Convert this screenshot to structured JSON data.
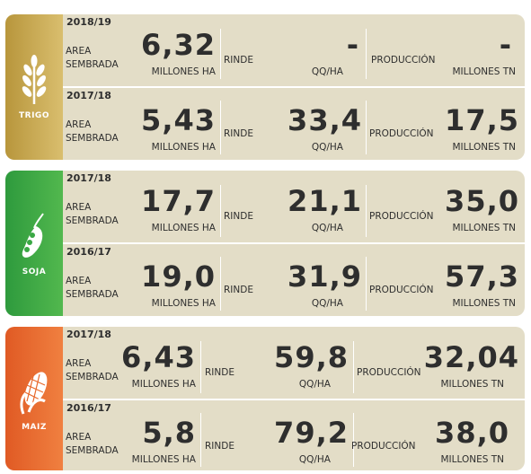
{
  "crops": [
    {
      "name": "TRIGO",
      "icon": "wheat-icon",
      "rows": [
        {
          "season": "2018/19",
          "area": "6,32",
          "rinde": "-",
          "produccion": "-"
        },
        {
          "season": "2017/18",
          "area": "5,43",
          "rinde": "33,4",
          "produccion": "17,5"
        }
      ]
    },
    {
      "name": "SOJA",
      "icon": "soybean-icon",
      "rows": [
        {
          "season": "2017/18",
          "area": "17,7",
          "rinde": "21,1",
          "produccion": "35,0"
        },
        {
          "season": "2016/17",
          "area": "19,0",
          "rinde": "31,9",
          "produccion": "57,3"
        }
      ]
    },
    {
      "name": "MAIZ",
      "icon": "corn-icon",
      "rows": [
        {
          "season": "2017/18",
          "area": "6,43",
          "rinde": "59,8",
          "produccion": "32,04"
        },
        {
          "season": "2016/17",
          "area": "5,8",
          "rinde": "79,2",
          "produccion": "38,0"
        }
      ]
    }
  ],
  "labels": {
    "area_line1": "AREA",
    "area_line2": "SEMBRADA",
    "rinde": "RINDE",
    "produccion": "PRODUCCIÓN",
    "area_unit": "MILLONES HA",
    "rinde_unit": "QQ/HA",
    "produccion_unit": "MILLONES TN"
  },
  "colors": {
    "trigo": "#c8a84e",
    "soja": "#3aa845",
    "maiz": "#e8692c",
    "panel": "#e3ddc7"
  }
}
